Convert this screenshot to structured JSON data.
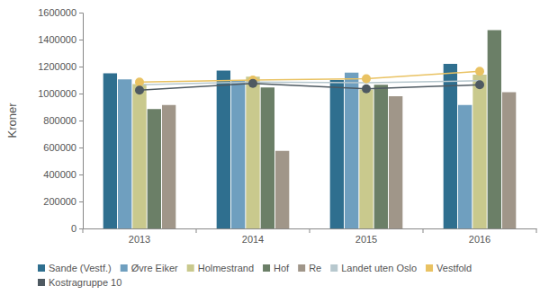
{
  "chart_data": {
    "type": "bar",
    "y_label": "Kroner",
    "categories": [
      "2013",
      "2014",
      "2015",
      "2016"
    ],
    "ylim": [
      0,
      1600000
    ],
    "yticks": [
      0,
      200000,
      400000,
      600000,
      800000,
      1000000,
      1200000,
      1400000,
      1600000
    ],
    "grid": false,
    "legend": "bottom",
    "series": [
      {
        "name": "Sande (Vestf.)",
        "type": "bar",
        "color": "#2f6f8f",
        "values": [
          1150000,
          1170000,
          1100000,
          1220000
        ]
      },
      {
        "name": "Øvre Eiker",
        "type": "bar",
        "color": "#6f9fbf",
        "values": [
          1105000,
          1100000,
          1155000,
          915000
        ]
      },
      {
        "name": "Holmestrand",
        "type": "bar",
        "color": "#c9c98d",
        "values": [
          1070000,
          1125000,
          1030000,
          1140000
        ]
      },
      {
        "name": "Hof",
        "type": "bar",
        "color": "#6b7f67",
        "values": [
          885000,
          1045000,
          1065000,
          1470000
        ]
      },
      {
        "name": "Re",
        "type": "bar",
        "color": "#a09689",
        "values": [
          915000,
          575000,
          980000,
          1010000
        ]
      },
      {
        "name": "Landet uten Oslo",
        "type": "line",
        "marker": "none",
        "color": "#b7c8ce",
        "values": [
          1065000,
          1085000,
          1080000,
          1095000
        ]
      },
      {
        "name": "Vestfold",
        "type": "line",
        "marker": "circle",
        "color": "#e9c262",
        "values": [
          1085000,
          1100000,
          1110000,
          1165000
        ]
      },
      {
        "name": "Kostragruppe 10",
        "type": "line",
        "marker": "circle",
        "color": "#4e5961",
        "values": [
          1025000,
          1075000,
          1035000,
          1065000
        ]
      }
    ]
  }
}
